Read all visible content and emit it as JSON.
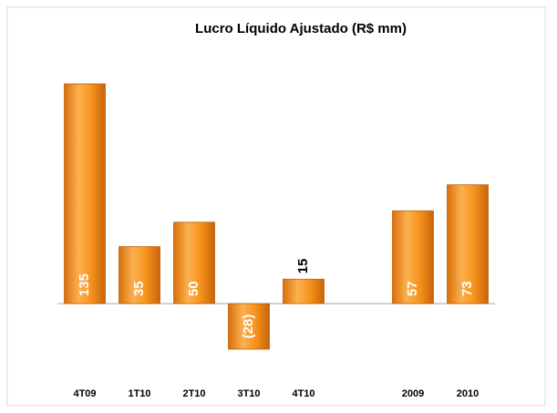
{
  "chart_data": {
    "type": "bar",
    "title": "Lucro Líquido Ajustado (R$ mm)",
    "categories": [
      "4T09",
      "1T10",
      "2T10",
      "3T10",
      "4T10",
      null,
      "2009",
      "2010"
    ],
    "values": [
      135,
      35,
      50,
      -28,
      15,
      null,
      57,
      73
    ],
    "value_labels": [
      "135",
      "35",
      "50",
      "(28)",
      "15",
      null,
      "57",
      "73"
    ],
    "color": "#f7941d"
  }
}
